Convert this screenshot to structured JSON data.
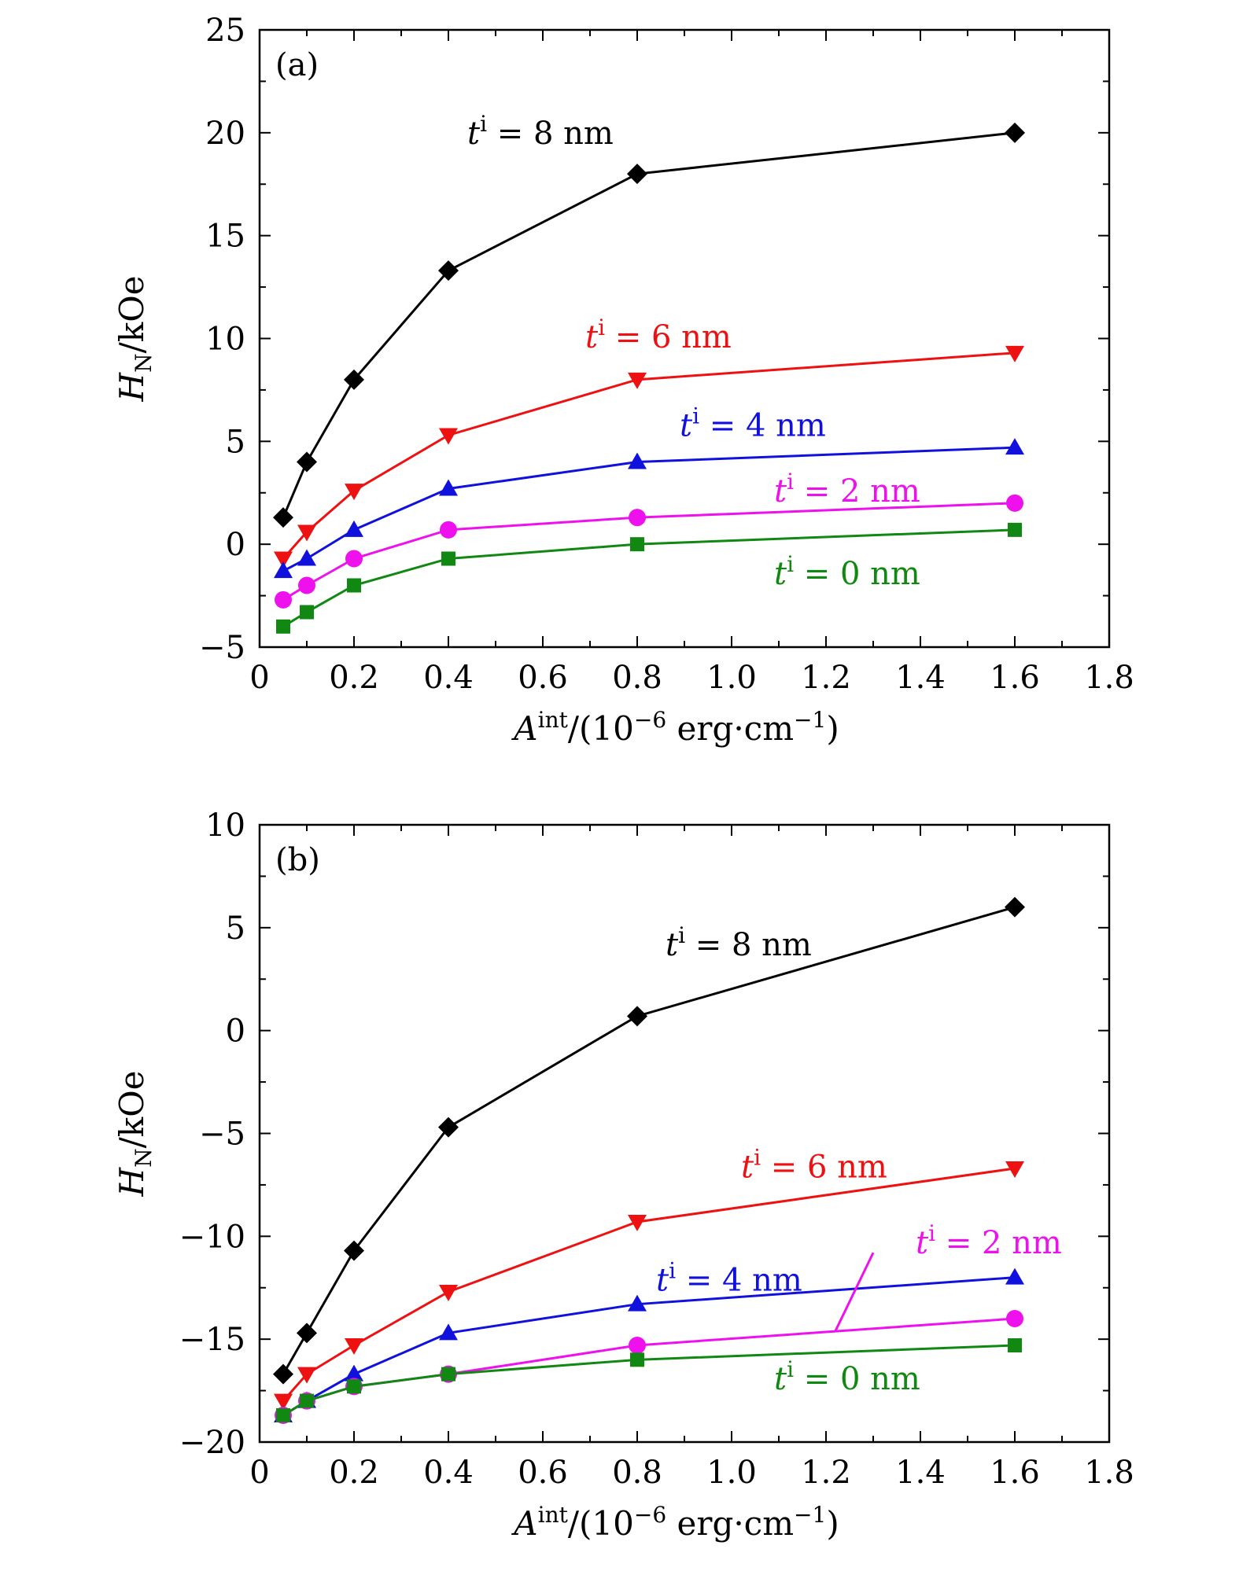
{
  "chart_data": [
    {
      "type": "line",
      "panel_label": "(a)",
      "xlabel": {
        "main": "A",
        "sup": "int",
        "rest": "/(10",
        "exp": "−6",
        "unit": " erg·cm",
        "unit_exp": "−1",
        "close": ")"
      },
      "ylabel": {
        "main": "H",
        "sub": "N",
        "rest": "/kOe"
      },
      "xlim": [
        0,
        1.8
      ],
      "ylim": [
        -5,
        25
      ],
      "xticks": [
        0,
        0.2,
        0.4,
        0.6,
        0.8,
        1.0,
        1.2,
        1.4,
        1.6,
        1.8
      ],
      "xtick_labels": [
        "0",
        "0.2",
        "0.4",
        "0.6",
        "0.8",
        "1.0",
        "1.2",
        "1.4",
        "1.6",
        "1.8"
      ],
      "yticks": [
        -5,
        0,
        5,
        10,
        15,
        20,
        25
      ],
      "ytick_labels": [
        "−5",
        "0",
        "5",
        "10",
        "15",
        "20",
        "25"
      ],
      "x": [
        0.05,
        0.1,
        0.2,
        0.4,
        0.8,
        1.6
      ],
      "series": [
        {
          "name": "ti = 8 nm",
          "label_t": "t",
          "label_sup": "i",
          "label_rest": " = 8 nm",
          "color": "#000000",
          "marker": "diamond",
          "values": [
            1.3,
            4.0,
            8.0,
            13.3,
            18.0,
            20.0
          ],
          "label_anchor": [
            0.44,
            20
          ]
        },
        {
          "name": "ti = 6 nm",
          "label_t": "t",
          "label_sup": "i",
          "label_rest": " = 6 nm",
          "color": "#ee1111",
          "marker": "triangle-down",
          "values": [
            -0.7,
            0.6,
            2.6,
            5.3,
            8.0,
            9.3
          ],
          "label_anchor": [
            0.69,
            10.1
          ]
        },
        {
          "name": "ti = 4 nm",
          "label_t": "t",
          "label_sup": "i",
          "label_rest": " = 4 nm",
          "color": "#1111dd",
          "marker": "triangle-up",
          "values": [
            -1.3,
            -0.7,
            0.7,
            2.7,
            4.0,
            4.7
          ],
          "label_anchor": [
            0.89,
            5.8
          ]
        },
        {
          "name": "ti = 2 nm",
          "label_t": "t",
          "label_sup": "i",
          "label_rest": " = 2 nm",
          "color": "#ee11ee",
          "marker": "circle",
          "values": [
            -2.7,
            -2.0,
            -0.7,
            0.7,
            1.3,
            2.0
          ],
          "label_anchor": [
            1.09,
            2.6
          ]
        },
        {
          "name": "ti = 0 nm",
          "label_t": "t",
          "label_sup": "i",
          "label_rest": " = 0 nm",
          "color": "#118811",
          "marker": "square",
          "values": [
            -4.0,
            -3.3,
            -2.0,
            -0.7,
            0.0,
            0.7
          ],
          "label_anchor": [
            1.09,
            -1.4
          ]
        }
      ]
    },
    {
      "type": "line",
      "panel_label": "(b)",
      "xlabel": {
        "main": "A",
        "sup": "int",
        "rest": "/(10",
        "exp": "−6",
        "unit": " erg·cm",
        "unit_exp": "−1",
        "close": ")"
      },
      "ylabel": {
        "main": "H",
        "sub": "N",
        "rest": "/kOe"
      },
      "xlim": [
        0,
        1.8
      ],
      "ylim": [
        -20,
        10
      ],
      "xticks": [
        0,
        0.2,
        0.4,
        0.6,
        0.8,
        1.0,
        1.2,
        1.4,
        1.6,
        1.8
      ],
      "xtick_labels": [
        "0",
        "0.2",
        "0.4",
        "0.6",
        "0.8",
        "1.0",
        "1.2",
        "1.4",
        "1.6",
        "1.8"
      ],
      "yticks": [
        -20,
        -15,
        -10,
        -5,
        0,
        5,
        10
      ],
      "ytick_labels": [
        "−20",
        "−15",
        "−10",
        "−5",
        "0",
        "5",
        "10"
      ],
      "x": [
        0.05,
        0.1,
        0.2,
        0.4,
        0.8,
        1.6
      ],
      "series": [
        {
          "name": "ti = 8 nm",
          "label_t": "t",
          "label_sup": "i",
          "label_rest": " = 8 nm",
          "color": "#000000",
          "marker": "diamond",
          "values": [
            -16.7,
            -14.7,
            -10.7,
            -4.7,
            0.7,
            6.0
          ],
          "label_anchor": [
            0.86,
            4.2
          ]
        },
        {
          "name": "ti = 6 nm",
          "label_t": "t",
          "label_sup": "i",
          "label_rest": " = 6 nm",
          "color": "#ee1111",
          "marker": "triangle-down",
          "values": [
            -18.0,
            -16.7,
            -15.3,
            -12.7,
            -9.3,
            -6.7
          ],
          "label_anchor": [
            1.02,
            -6.6
          ]
        },
        {
          "name": "ti = 4 nm",
          "label_t": "t",
          "label_sup": "i",
          "label_rest": " = 4 nm",
          "color": "#1111dd",
          "marker": "triangle-up",
          "values": [
            -18.7,
            -18.0,
            -16.7,
            -14.7,
            -13.3,
            -12.0
          ],
          "label_anchor": [
            0.84,
            -12.1
          ]
        },
        {
          "name": "ti = 2 nm",
          "label_t": "t",
          "label_sup": "i",
          "label_rest": " = 2 nm",
          "color": "#ee11ee",
          "marker": "circle",
          "values": [
            -18.7,
            -18.0,
            -17.3,
            -16.7,
            -15.3,
            -14.0
          ],
          "label_anchor": [
            1.39,
            -10.3
          ],
          "leader_from": [
            1.3,
            -10.8
          ],
          "leader_to": [
            1.22,
            -14.6
          ]
        },
        {
          "name": "ti = 0 nm",
          "label_t": "t",
          "label_sup": "i",
          "label_rest": " = 0 nm",
          "color": "#118811",
          "marker": "square",
          "values": [
            -18.7,
            -18.0,
            -17.3,
            -16.7,
            -16.0,
            -15.3
          ],
          "label_anchor": [
            1.09,
            -16.9
          ]
        }
      ]
    }
  ]
}
